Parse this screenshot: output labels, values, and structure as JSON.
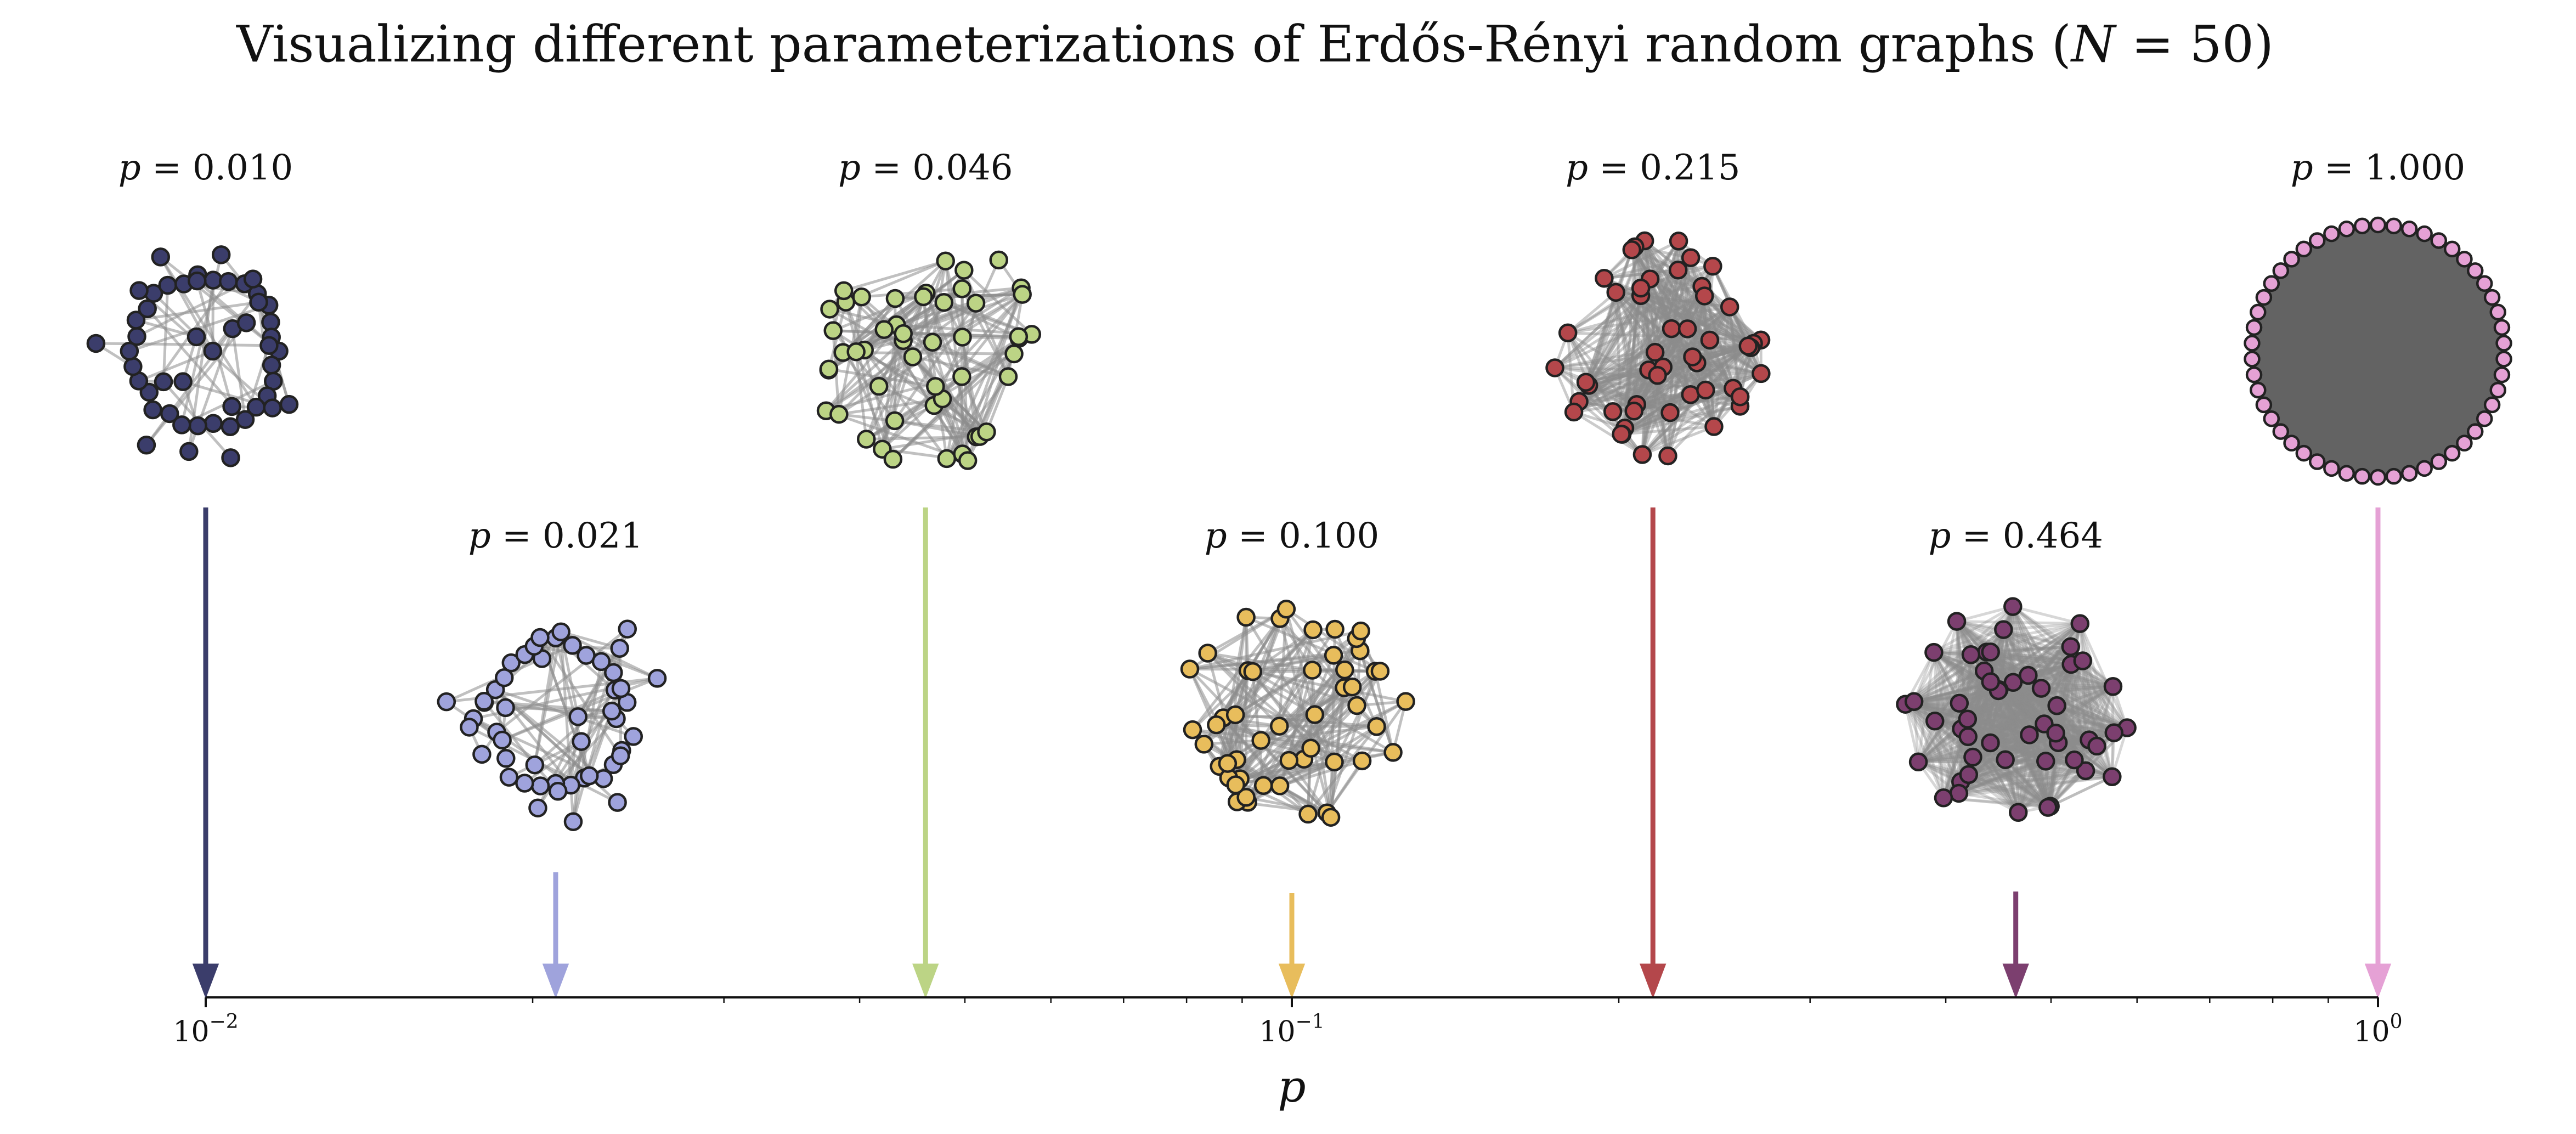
{
  "title": "Visualizing different parameterizations of Erdős-Rényi random graphs (N = 50)",
  "title_parts": {
    "prefix": "Visualizing different parameterizations of Erdős-Rényi random graphs (",
    "n_symbol": "N",
    "equals": " = 50)"
  },
  "axis": {
    "label": "p",
    "scale": "log",
    "range": [
      0.01,
      1.0
    ],
    "ticks": [
      {
        "value": 0.01,
        "base": "10",
        "exp": "−2"
      },
      {
        "value": 0.1,
        "base": "10",
        "exp": "−1"
      },
      {
        "value": 1.0,
        "base": "10",
        "exp": "0"
      }
    ]
  },
  "chart_data": {
    "type": "scatter",
    "title": "Visualizing different parameterizations of Erdős-Rényi random graphs (N = 50)",
    "xlabel": "p",
    "xscale": "log",
    "xlim": [
      0.01,
      1.0
    ],
    "n_nodes": 50,
    "graphs": [
      {
        "p": 0.01,
        "label": "= 0.010",
        "color": "#3b3d6b",
        "row": "top"
      },
      {
        "p": 0.021,
        "label": "= 0.021",
        "color": "#9fa3dc",
        "row": "bottom"
      },
      {
        "p": 0.046,
        "label": "= 0.046",
        "color": "#bcd485",
        "row": "top"
      },
      {
        "p": 0.1,
        "label": "= 0.100",
        "color": "#e8bd5c",
        "row": "bottom"
      },
      {
        "p": 0.215,
        "label": "= 0.215",
        "color": "#b4474b",
        "row": "top"
      },
      {
        "p": 0.464,
        "label": "= 0.464",
        "color": "#7c3f6f",
        "row": "bottom"
      },
      {
        "p": 1.0,
        "label": "= 1.000",
        "color": "#e5a1d5",
        "row": "top"
      }
    ]
  },
  "colors": {
    "edge": "#8c8c8c",
    "node_stroke": "#222222",
    "axis": "#111111",
    "complete_fill": "#636363"
  }
}
